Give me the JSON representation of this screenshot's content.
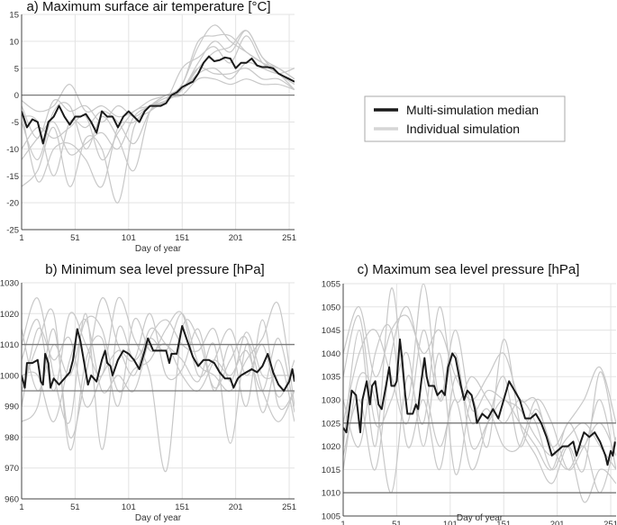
{
  "legend": {
    "median_label": "Multi-simulation median",
    "individual_label": "Individual simulation",
    "median_color": "#1a1a1a",
    "individual_color": "#c8c8c8"
  },
  "chart_data": [
    {
      "id": "a",
      "type": "line",
      "title": "a) Maximum surface air temperature [°C]",
      "xlabel": "Day of year",
      "ylabel": "",
      "xlim": [
        1,
        256
      ],
      "ylim": [
        -25,
        15
      ],
      "xticks": [
        1,
        51,
        101,
        151,
        201,
        251
      ],
      "yticks": [
        -25,
        -20,
        -15,
        -10,
        -5,
        0,
        5,
        10,
        15
      ],
      "reference_lines": [
        0
      ],
      "grid": true,
      "median": {
        "x": [
          1,
          6,
          11,
          16,
          21,
          26,
          31,
          36,
          41,
          46,
          51,
          56,
          61,
          66,
          71,
          76,
          81,
          86,
          91,
          96,
          101,
          106,
          111,
          116,
          121,
          126,
          131,
          136,
          141,
          146,
          151,
          156,
          161,
          166,
          171,
          176,
          181,
          186,
          191,
          196,
          201,
          206,
          211,
          216,
          221,
          226,
          231,
          236,
          241,
          246,
          251,
          256
        ],
        "y": [
          -3,
          -6,
          -4.5,
          -5,
          -9,
          -5,
          -4,
          -2,
          -4,
          -5.5,
          -4,
          -4,
          -3.5,
          -5,
          -7,
          -3,
          -4,
          -4,
          -6,
          -4,
          -3,
          -4,
          -5,
          -3,
          -2,
          -2,
          -2,
          -1.5,
          0,
          0.5,
          1.5,
          2,
          2.5,
          4,
          6,
          7.2,
          6.3,
          6.5,
          7,
          6.8,
          5,
          6,
          6,
          6.8,
          5.5,
          5.2,
          5.2,
          5,
          4,
          3.5,
          3,
          2.5
        ]
      },
      "individual_x": [
        1,
        16,
        31,
        46,
        61,
        76,
        91,
        106,
        121,
        136,
        151,
        166,
        181,
        196,
        211,
        226,
        241,
        256
      ],
      "individual": [
        [
          -2,
          -8,
          -1,
          -3,
          -2,
          -5,
          -2,
          -4,
          -2,
          -1,
          1,
          6,
          10,
          8,
          12,
          7,
          5,
          3
        ],
        [
          -17,
          -14,
          -6,
          -17,
          -8,
          -10,
          -20,
          -6,
          -3,
          -1,
          2,
          9,
          13,
          10,
          8,
          6,
          4,
          1
        ],
        [
          -5,
          -12,
          -3,
          -2,
          -10,
          -4,
          -8,
          -14,
          -3,
          -1,
          5,
          7,
          9,
          6,
          11,
          6,
          4,
          2
        ],
        [
          -3,
          -16,
          -10,
          -9,
          -12,
          -17,
          -6,
          -5,
          -2,
          0,
          1,
          4,
          5,
          3,
          6,
          5,
          4,
          5
        ],
        [
          -1,
          -3,
          -2,
          2,
          -3,
          -2,
          -4,
          -3,
          -1,
          0,
          2,
          10,
          11,
          11,
          8,
          6,
          5,
          3
        ],
        [
          -10,
          -6,
          -8,
          -6,
          -4,
          -12,
          -7,
          -3,
          -2,
          -0.5,
          0,
          3,
          3,
          2,
          3,
          2,
          2,
          1
        ],
        [
          -4,
          -5,
          -15,
          -5,
          -6,
          -3,
          -5,
          -9,
          -3,
          -1,
          1,
          5,
          4,
          4,
          5,
          3,
          3,
          1
        ],
        [
          -12,
          -8,
          -5,
          -11,
          -9,
          -7,
          -10,
          -4,
          -2,
          0,
          1,
          5,
          8,
          9,
          12,
          7,
          4,
          2
        ]
      ]
    },
    {
      "id": "b",
      "type": "line",
      "title": "b) Minimum sea level pressure [hPa]",
      "xlabel": "Day of year",
      "ylabel": "",
      "xlim": [
        1,
        256
      ],
      "ylim": [
        960,
        1030
      ],
      "xticks": [
        1,
        51,
        101,
        151,
        201,
        251
      ],
      "yticks": [
        960,
        970,
        980,
        990,
        1000,
        1010,
        1020,
        1030
      ],
      "reference_lines": [
        995,
        1010
      ],
      "grid": true,
      "median": {
        "x": [
          1,
          4,
          6,
          11,
          16,
          19,
          21,
          23,
          26,
          28,
          31,
          36,
          41,
          46,
          49,
          53,
          56,
          59,
          63,
          66,
          71,
          76,
          79,
          81,
          84,
          86,
          91,
          96,
          101,
          106,
          111,
          116,
          119,
          124,
          131,
          136,
          139,
          141,
          146,
          151,
          156,
          161,
          166,
          171,
          176,
          181,
          186,
          191,
          196,
          199,
          203,
          206,
          211,
          216,
          221,
          226,
          231,
          236,
          241,
          246,
          251,
          254,
          256
        ],
        "y": [
          1000,
          996,
          1004,
          1004,
          1005,
          998,
          997,
          1007,
          1004,
          996,
          999,
          997,
          999,
          1001,
          1005,
          1015,
          1011,
          1005,
          997,
          1000,
          998,
          1005,
          1008,
          1004,
          1003,
          1000,
          1005,
          1008,
          1007,
          1005,
          1002,
          1008,
          1012,
          1008,
          1008,
          1008,
          1004,
          1007,
          1007,
          1016,
          1011,
          1006,
          1003,
          1005,
          1005,
          1004,
          1001,
          999,
          999,
          996,
          999,
          1000,
          1001,
          1002,
          1001,
          1003,
          1007,
          1001,
          997,
          995,
          998,
          1002,
          998
        ]
      },
      "individual_x": [
        1,
        16,
        31,
        46,
        61,
        76,
        91,
        106,
        121,
        136,
        151,
        166,
        181,
        196,
        211,
        226,
        241,
        256
      ],
      "individual": [
        [
          1010,
          1025,
          1000,
          985,
          1020,
          976,
          1015,
          1005,
          1012,
          1008,
          1020,
          1004,
          1000,
          995,
          1005,
          1012,
          1023,
          990
        ],
        [
          985,
          990,
          1015,
          980,
          1000,
          1025,
          1010,
          1000,
          1015,
          1010,
          1005,
          998,
          1010,
          978,
          1010,
          995,
          985,
          995
        ],
        [
          1005,
          1018,
          995,
          1020,
          1010,
          1000,
          1025,
          1012,
          1000,
          969,
          1015,
          1012,
          996,
          1005,
          1012,
          988,
          1005,
          985
        ],
        [
          995,
          1010,
          1020,
          976,
          1005,
          1012,
          990,
          1018,
          1008,
          1010,
          1000,
          995,
          1005,
          1015,
          1000,
          1010,
          993,
          1005
        ],
        [
          1000,
          1000,
          985,
          1005,
          1018,
          995,
          1000,
          995,
          1012,
          1018,
          1010,
          1008,
          1015,
          998,
          1014,
          1000,
          1000,
          1000
        ],
        [
          990,
          1015,
          1005,
          1012,
          990,
          1000,
          1008,
          1005,
          1020,
          1000,
          1002,
          1015,
          995,
          1010,
          990,
          1018,
          990,
          995
        ],
        [
          1015,
          995,
          1010,
          1000,
          1018,
          1015,
          995,
          1002,
          1005,
          1015,
          1020,
          1000,
          1005,
          1000,
          1008,
          995,
          1012,
          988
        ]
      ]
    },
    {
      "id": "c",
      "type": "line",
      "title": "c) Maximum sea level pressure [hPa]",
      "xlabel": "Day of year",
      "ylabel": "",
      "xlim": [
        1,
        256
      ],
      "ylim": [
        1005,
        1055
      ],
      "xticks": [
        1,
        51,
        101,
        151,
        201,
        251
      ],
      "yticks": [
        1005,
        1010,
        1015,
        1020,
        1025,
        1030,
        1035,
        1040,
        1045,
        1050,
        1055
      ],
      "reference_lines": [
        1010,
        1025
      ],
      "grid": true,
      "median": {
        "x": [
          1,
          4,
          9,
          13,
          17,
          19,
          21,
          23,
          26,
          28,
          31,
          34,
          37,
          41,
          44,
          46,
          49,
          51,
          54,
          56,
          59,
          61,
          66,
          69,
          71,
          74,
          77,
          79,
          81,
          86,
          89,
          93,
          96,
          99,
          103,
          106,
          111,
          114,
          117,
          121,
          124,
          126,
          131,
          136,
          141,
          146,
          151,
          156,
          161,
          166,
          171,
          176,
          181,
          186,
          191,
          196,
          201,
          206,
          211,
          216,
          219,
          223,
          226,
          231,
          236,
          241,
          246,
          248,
          251,
          253,
          255
        ],
        "y": [
          1024,
          1023,
          1032,
          1031,
          1023,
          1030,
          1032,
          1034,
          1029,
          1033,
          1034,
          1029,
          1028,
          1033,
          1037,
          1033,
          1033,
          1034,
          1043,
          1039,
          1031,
          1027,
          1027,
          1029,
          1028,
          1034,
          1039,
          1035,
          1033,
          1033,
          1031,
          1032,
          1031,
          1037,
          1040,
          1039,
          1033,
          1030,
          1032,
          1031,
          1028,
          1025,
          1027,
          1026,
          1028,
          1026,
          1030,
          1034,
          1032,
          1030,
          1026,
          1026,
          1027,
          1025,
          1022,
          1018,
          1019,
          1020,
          1020,
          1021,
          1018,
          1021,
          1023,
          1022,
          1023,
          1021,
          1018,
          1016,
          1019,
          1018,
          1021
        ]
      },
      "individual_x": [
        1,
        16,
        31,
        46,
        61,
        76,
        91,
        106,
        121,
        136,
        151,
        166,
        181,
        196,
        211,
        226,
        241,
        256
      ],
      "individual": [
        [
          1040,
          1050,
          1035,
          1045,
          1048,
          1040,
          1045,
          1035,
          1030,
          1035,
          1040,
          1030,
          1030,
          1020,
          1025,
          1030,
          1037,
          1025
        ],
        [
          1020,
          1045,
          1020,
          1054,
          1030,
          1055,
          1030,
          1040,
          1020,
          1025,
          1030,
          1025,
          1020,
          1015,
          1025,
          1020,
          1030,
          1015
        ],
        [
          1015,
          1035,
          1030,
          1010,
          1035,
          1025,
          1050,
          1030,
          1035,
          1030,
          1025,
          1030,
          1025,
          1015,
          1020,
          1008,
          1015,
          1012
        ],
        [
          1030,
          1020,
          1040,
          1045,
          1020,
          1030,
          1015,
          1035,
          1025,
          1028,
          1020,
          1020,
          1030,
          1025,
          1015,
          1020,
          1025,
          1018
        ],
        [
          1035,
          1048,
          1025,
          1030,
          1040,
          1020,
          1040,
          1014,
          1030,
          1020,
          1043,
          1025,
          1018,
          1012,
          1020,
          1015,
          1036,
          1020
        ],
        [
          1025,
          1040,
          1045,
          1035,
          1025,
          1045,
          1030,
          1045,
          1028,
          1032,
          1030,
          1028,
          1022,
          1018,
          1022,
          1025,
          1020,
          1015
        ],
        [
          1018,
          1030,
          1015,
          1040,
          1050,
          1035,
          1020,
          1030,
          1015,
          1025,
          1035,
          1020,
          1028,
          1020,
          1015,
          1020,
          1010,
          1022
        ]
      ]
    }
  ]
}
